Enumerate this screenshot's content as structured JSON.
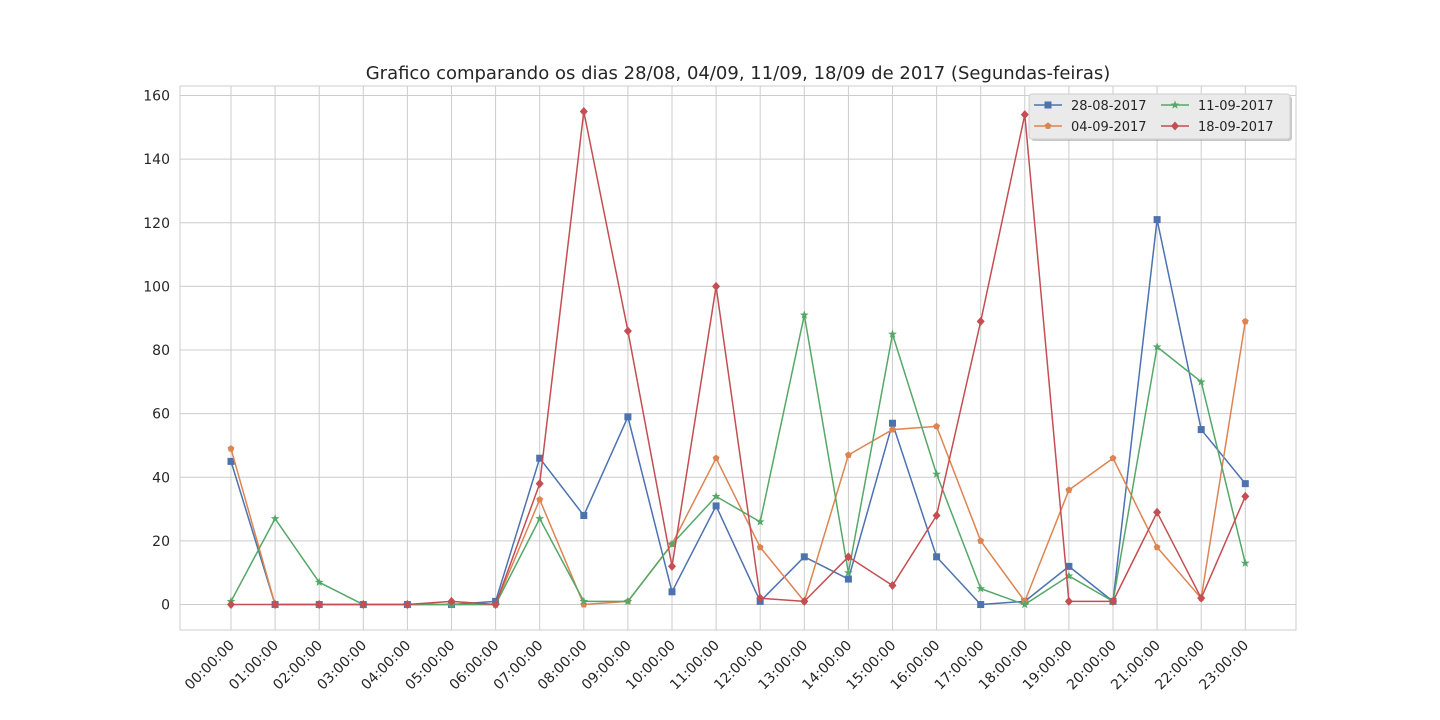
{
  "chart_data": {
    "type": "line",
    "title": "Grafico comparando os dias 28/08, 04/09, 11/09, 18/09 de 2017 (Segundas-feiras)",
    "xlabel": "",
    "ylabel": "",
    "categories": [
      "00:00:00",
      "01:00:00",
      "02:00:00",
      "03:00:00",
      "04:00:00",
      "05:00:00",
      "06:00:00",
      "07:00:00",
      "08:00:00",
      "09:00:00",
      "10:00:00",
      "11:00:00",
      "12:00:00",
      "13:00:00",
      "14:00:00",
      "15:00:00",
      "16:00:00",
      "17:00:00",
      "18:00:00",
      "19:00:00",
      "20:00:00",
      "21:00:00",
      "22:00:00",
      "23:00:00"
    ],
    "yticks": [
      0,
      20,
      40,
      60,
      80,
      100,
      120,
      140,
      160
    ],
    "ylim": [
      -8,
      163
    ],
    "grid": true,
    "legend": {
      "position": "top-right",
      "columns": 2
    },
    "series": [
      {
        "name": "28-08-2017",
        "color": "#4c72b0",
        "marker": "square",
        "values": [
          45,
          0,
          0,
          0,
          0,
          0,
          1,
          46,
          28,
          59,
          4,
          31,
          1,
          15,
          8,
          57,
          15,
          0,
          1,
          12,
          1,
          121,
          55,
          38
        ]
      },
      {
        "name": "04-09-2017",
        "color": "#dd8452",
        "marker": "pentagon",
        "values": [
          49,
          0,
          0,
          0,
          0,
          0,
          0,
          33,
          0,
          1,
          19,
          46,
          18,
          1,
          47,
          55,
          56,
          20,
          1,
          36,
          46,
          18,
          2,
          89
        ]
      },
      {
        "name": "11-09-2017",
        "color": "#55a868",
        "marker": "star",
        "values": [
          1,
          27,
          7,
          0,
          0,
          0,
          0,
          27,
          1,
          1,
          19,
          34,
          26,
          91,
          10,
          85,
          41,
          5,
          0,
          9,
          1,
          81,
          70,
          13
        ]
      },
      {
        "name": "18-09-2017",
        "color": "#c44e52",
        "marker": "diamond",
        "values": [
          0,
          0,
          0,
          0,
          0,
          1,
          0,
          38,
          155,
          86,
          12,
          100,
          2,
          1,
          15,
          6,
          28,
          89,
          154,
          1,
          1,
          29,
          2,
          34
        ]
      }
    ]
  }
}
